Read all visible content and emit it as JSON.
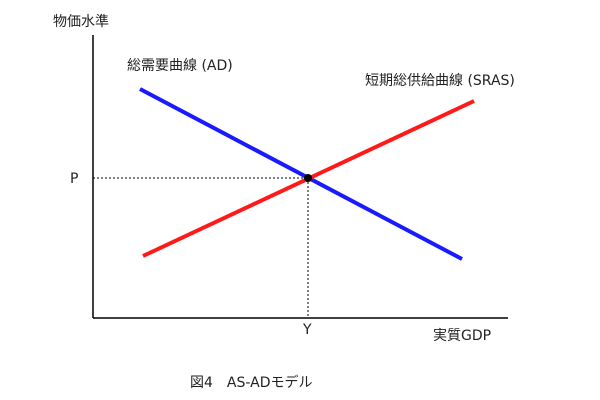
{
  "axes": {
    "y_label": "物価水準",
    "x_label": "実質GDP"
  },
  "curves": {
    "ad": {
      "label": "総需要曲線 (AD)",
      "color": "#1a1aff"
    },
    "sras": {
      "label": "短期総供給曲線 (SRAS)",
      "color": "#ff1a1a"
    }
  },
  "equilibrium": {
    "price_label": "P",
    "output_label": "Y"
  },
  "caption": "図4　AS-ADモデル"
}
